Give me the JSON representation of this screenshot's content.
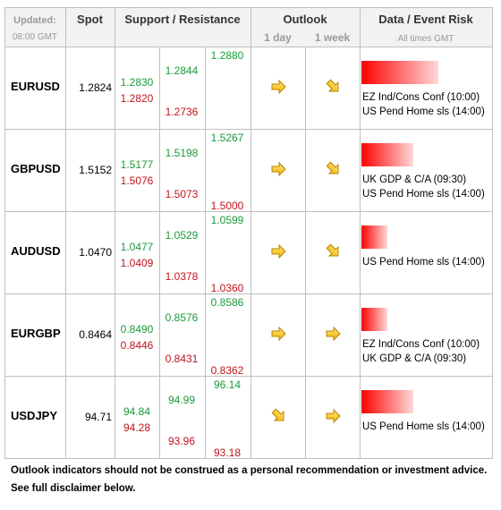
{
  "header": {
    "updated": "Updated:",
    "time": "08:00 GMT",
    "spot": "Spot",
    "sr": "Support / Resistance",
    "outlook": "Outlook",
    "day": "1 day",
    "week": "1 week",
    "events": "Data / Event Risk",
    "times": "All times GMT"
  },
  "rows": [
    {
      "pair": "EURUSD",
      "spot": "1.2824",
      "levels": [
        {
          "resistance": "1.2830",
          "support": "1.2820"
        },
        {
          "resistance": "1.2844",
          "support": "1.2736"
        },
        {
          "resistance": "1.2880"
        }
      ],
      "events": [
        "EZ Ind/Cons Conf (10:00)",
        "US Pend Home sls (14:00)"
      ]
    },
    {
      "pair": "GBPUSD",
      "spot": "1.5152",
      "levels": [
        {
          "resistance": "1.5177",
          "support": "1.5076"
        },
        {
          "resistance": "1.5198",
          "support": "1.5073"
        },
        {
          "resistance": "1.5267",
          "support": "1.5000"
        }
      ],
      "events": [
        "UK GDP & C/A (09:30)",
        "US Pend Home sls (14:00)"
      ]
    },
    {
      "pair": "AUDUSD",
      "spot": "1.0470",
      "levels": [
        {
          "resistance": "1.0477",
          "support": "1.0409"
        },
        {
          "resistance": "1.0529",
          "support": "1.0378"
        },
        {
          "resistance": "1.0599",
          "support": "1.0360"
        }
      ],
      "events": [
        "US Pend Home sls (14:00)"
      ]
    },
    {
      "pair": "EURGBP",
      "spot": "0.8464",
      "levels": [
        {
          "resistance": "0.8490",
          "support": "0.8446"
        },
        {
          "resistance": "0.8576",
          "support": "0.8431"
        },
        {
          "resistance": "0.8586",
          "support": "0.8362"
        }
      ],
      "events": [
        "EZ Ind/Cons Conf (10:00)",
        "UK GDP & C/A (09:30)"
      ]
    },
    {
      "pair": "USDJPY",
      "spot": "94.71",
      "levels": [
        {
          "resistance": "94.84",
          "support": "94.28"
        },
        {
          "resistance": "94.99",
          "support": "93.96"
        },
        {
          "resistance": "96.14",
          "support": "93.18"
        }
      ],
      "events": [
        "US Pend Home sls (14:00)"
      ]
    }
  ],
  "footer": [
    "Outlook indicators should not be construed as a personal recommendation or investment advice.",
    "See full disclaimer below."
  ]
}
